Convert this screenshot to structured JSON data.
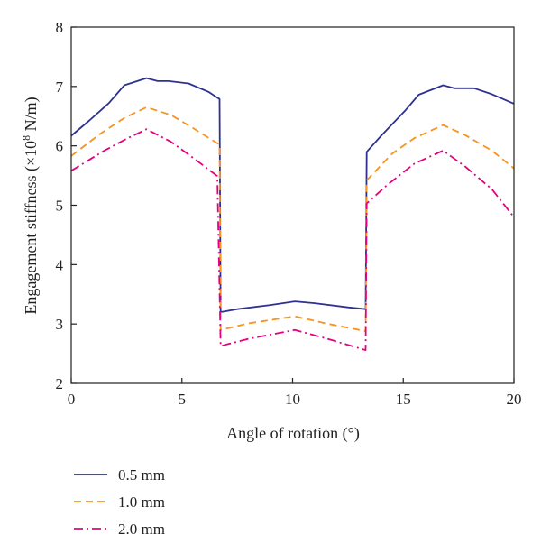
{
  "chart_data": {
    "type": "line",
    "xlabel": "Angle of rotation (°)",
    "ylabel_main": "Engagement stiffness (×10",
    "ylabel_exp": "8",
    "ylabel_unit": " N/m)",
    "xlim": [
      0,
      20
    ],
    "ylim": [
      2,
      8
    ],
    "xticks": [
      "0",
      "5",
      "10",
      "15",
      "20"
    ],
    "yticks": [
      "2",
      "3",
      "4",
      "5",
      "6",
      "7",
      "8"
    ],
    "grid": false,
    "legend_position": "bottom-left",
    "series": [
      {
        "name": "0.5 mm",
        "color": "#2e3192",
        "dash": "solid",
        "points": [
          [
            0,
            6.17
          ],
          [
            0.8,
            6.42
          ],
          [
            1.7,
            6.72
          ],
          [
            2.4,
            7.02
          ],
          [
            3.4,
            7.14
          ],
          [
            3.9,
            7.09
          ],
          [
            4.4,
            7.09
          ],
          [
            5.3,
            7.05
          ],
          [
            6.2,
            6.91
          ],
          [
            6.6,
            6.81
          ],
          [
            6.7,
            6.79
          ],
          [
            6.75,
            3.2
          ],
          [
            7.5,
            3.25
          ],
          [
            9,
            3.32
          ],
          [
            10.1,
            3.38
          ],
          [
            11,
            3.35
          ],
          [
            12.5,
            3.28
          ],
          [
            13.3,
            3.25
          ],
          [
            13.35,
            5.9
          ],
          [
            14,
            6.17
          ],
          [
            15.1,
            6.6
          ],
          [
            15.7,
            6.86
          ],
          [
            16.8,
            7.02
          ],
          [
            17.3,
            6.97
          ],
          [
            18.2,
            6.97
          ],
          [
            19,
            6.87
          ],
          [
            20,
            6.71
          ]
        ]
      },
      {
        "name": "1.0 mm",
        "color": "#f7941d",
        "dash": "8,5",
        "points": [
          [
            0,
            5.83
          ],
          [
            1.3,
            6.2
          ],
          [
            2.4,
            6.47
          ],
          [
            3.4,
            6.65
          ],
          [
            4.5,
            6.52
          ],
          [
            5.5,
            6.3
          ],
          [
            6.7,
            6.02
          ],
          [
            6.75,
            2.9
          ],
          [
            8,
            3.01
          ],
          [
            10.1,
            3.13
          ],
          [
            11.5,
            3.01
          ],
          [
            13.3,
            2.88
          ],
          [
            13.35,
            5.42
          ],
          [
            14.5,
            5.87
          ],
          [
            15.5,
            6.13
          ],
          [
            16.8,
            6.35
          ],
          [
            17.8,
            6.18
          ],
          [
            19,
            5.92
          ],
          [
            20,
            5.62
          ]
        ]
      },
      {
        "name": "2.0 mm",
        "color": "#e6007e",
        "dash": "10,4,2,4",
        "points": [
          [
            0,
            5.58
          ],
          [
            1.5,
            5.92
          ],
          [
            2.5,
            6.12
          ],
          [
            3.4,
            6.28
          ],
          [
            4.5,
            6.07
          ],
          [
            5.5,
            5.8
          ],
          [
            6.6,
            5.49
          ],
          [
            6.75,
            2.63
          ],
          [
            8,
            2.75
          ],
          [
            10.1,
            2.9
          ],
          [
            11.5,
            2.76
          ],
          [
            13.3,
            2.56
          ],
          [
            13.35,
            5.03
          ],
          [
            14.3,
            5.35
          ],
          [
            15.5,
            5.7
          ],
          [
            16.8,
            5.92
          ],
          [
            17.8,
            5.65
          ],
          [
            19,
            5.27
          ],
          [
            20,
            4.8
          ]
        ]
      }
    ]
  }
}
